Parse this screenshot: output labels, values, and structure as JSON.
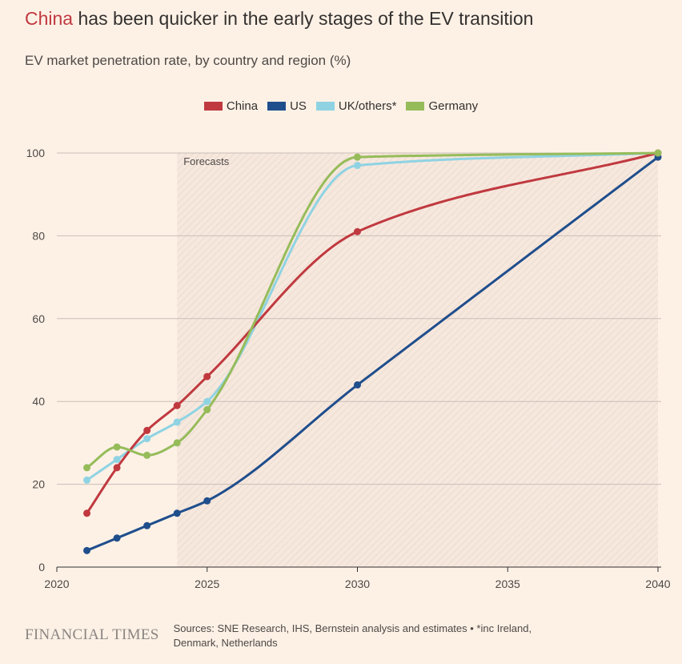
{
  "header": {
    "title_highlight": "China",
    "title_rest": " has been quicker in the early stages of the EV transition",
    "subtitle": "EV market penetration rate, by country and region (%)"
  },
  "footer": {
    "brand": "FINANCIAL TIMES",
    "sources": "Sources: SNE Research, IHS, Bernstein analysis and estimates • *inc Ireland, Denmark, Netherlands"
  },
  "chart_data": {
    "type": "line",
    "title": "China has been quicker in the early stages of the EV transition",
    "subtitle": "EV market penetration rate, by country and region (%)",
    "xlabel": "",
    "ylabel": "",
    "xlim": [
      2020,
      2040
    ],
    "ylim": [
      0,
      100
    ],
    "x_ticks": [
      2020,
      2025,
      2030,
      2035,
      2040
    ],
    "y_ticks": [
      0,
      20,
      40,
      60,
      80,
      100
    ],
    "grid": "horizontal",
    "legend_position": "top-center",
    "forecast_region": {
      "from": 2024,
      "to": 2040,
      "label": "Forecasts"
    },
    "series": [
      {
        "name": "China",
        "color": "#C0393F",
        "x": [
          2021,
          2022,
          2023,
          2024,
          2025,
          2030,
          2040
        ],
        "values": [
          13,
          24,
          33,
          39,
          46,
          81,
          100
        ]
      },
      {
        "name": "US",
        "color": "#1F4E8C",
        "x": [
          2021,
          2022,
          2023,
          2024,
          2025,
          2030,
          2040
        ],
        "values": [
          4,
          7,
          10,
          13,
          16,
          44,
          99
        ]
      },
      {
        "name": "UK/others*",
        "color": "#8FD3E3",
        "x": [
          2021,
          2022,
          2023,
          2024,
          2025,
          2030,
          2040
        ],
        "values": [
          21,
          26,
          31,
          35,
          40,
          97,
          100
        ]
      },
      {
        "name": "Germany",
        "color": "#96BC5A",
        "x": [
          2021,
          2022,
          2023,
          2024,
          2025,
          2030,
          2040
        ],
        "values": [
          24,
          29,
          27,
          30,
          38,
          99,
          100
        ]
      }
    ]
  }
}
